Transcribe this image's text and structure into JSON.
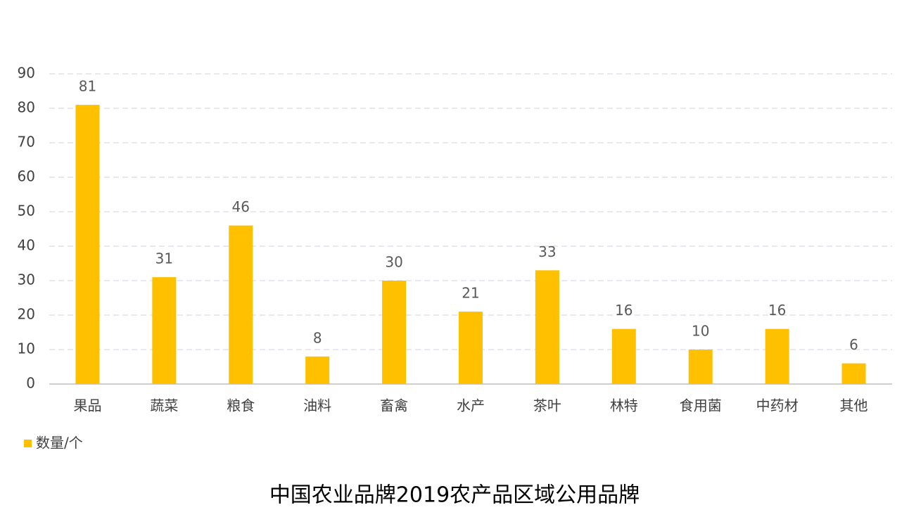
{
  "chart_data": {
    "type": "bar",
    "title": "中国农业品牌2019农产品区域公用品牌",
    "categories": [
      "果品",
      "蔬菜",
      "粮食",
      "油料",
      "畜禽",
      "水产",
      "茶叶",
      "林特",
      "食用菌",
      "中药材",
      "其他"
    ],
    "series": [
      {
        "name": "数量/个",
        "color": "#ffc000",
        "values": [
          81,
          31,
          46,
          8,
          30,
          21,
          33,
          16,
          10,
          16,
          6
        ]
      }
    ],
    "ylim": [
      0,
      90
    ],
    "yticks": [
      0,
      10,
      20,
      30,
      40,
      50,
      60,
      70,
      80,
      90
    ],
    "grid": true
  }
}
